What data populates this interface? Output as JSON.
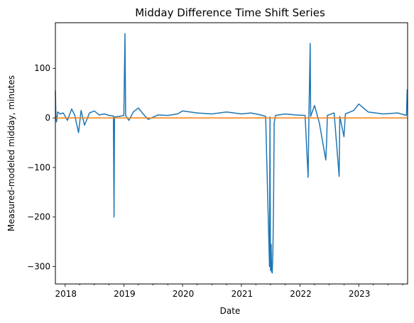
{
  "chart_data": {
    "type": "line",
    "title": "Midday Difference Time Shift Series",
    "xlabel": "Date",
    "ylabel": "Measured-modeled midday, minutes",
    "x_range": [
      "2017-11",
      "2023-11"
    ],
    "ylim": [
      -335,
      192
    ],
    "x_ticks": [
      "2018",
      "2019",
      "2020",
      "2021",
      "2022",
      "2023"
    ],
    "y_ticks": [
      100,
      0,
      -100,
      -200,
      -300
    ],
    "y_tick_labels": [
      "100",
      "0",
      "−100",
      "−200",
      "−300"
    ],
    "grid": false,
    "series": [
      {
        "color": "#1f77b4",
        "points": [
          [
            "2017-11-01",
            55
          ],
          [
            "2017-11-04",
            5
          ],
          [
            "2017-11-08",
            -8
          ],
          [
            "2017-11-15",
            12
          ],
          [
            "2017-12-01",
            8
          ],
          [
            "2017-12-20",
            10
          ],
          [
            "2018-01-15",
            -5
          ],
          [
            "2018-02-10",
            18
          ],
          [
            "2018-03-01",
            6
          ],
          [
            "2018-03-25",
            -30
          ],
          [
            "2018-04-10",
            15
          ],
          [
            "2018-05-01",
            -15
          ],
          [
            "2018-06-01",
            10
          ],
          [
            "2018-07-01",
            14
          ],
          [
            "2018-08-01",
            6
          ],
          [
            "2018-09-01",
            8
          ],
          [
            "2018-10-01",
            5
          ],
          [
            "2018-10-28",
            4
          ],
          [
            "2018-11-01",
            -200
          ],
          [
            "2018-11-04",
            2
          ],
          [
            "2018-12-01",
            3
          ],
          [
            "2019-01-01",
            5
          ],
          [
            "2019-01-08",
            170
          ],
          [
            "2019-01-12",
            5
          ],
          [
            "2019-02-01",
            -5
          ],
          [
            "2019-03-01",
            12
          ],
          [
            "2019-04-01",
            20
          ],
          [
            "2019-05-01",
            8
          ],
          [
            "2019-06-01",
            -3
          ],
          [
            "2019-08-01",
            6
          ],
          [
            "2019-10-01",
            5
          ],
          [
            "2019-12-01",
            8
          ],
          [
            "2020-01-01",
            14
          ],
          [
            "2020-04-01",
            10
          ],
          [
            "2020-07-01",
            8
          ],
          [
            "2020-10-01",
            12
          ],
          [
            "2021-01-01",
            8
          ],
          [
            "2021-03-01",
            10
          ],
          [
            "2021-05-01",
            6
          ],
          [
            "2021-06-01",
            3
          ],
          [
            "2021-06-25",
            -300
          ],
          [
            "2021-06-28",
            2
          ],
          [
            "2021-07-01",
            -308
          ],
          [
            "2021-07-05",
            -255
          ],
          [
            "2021-07-08",
            -310
          ],
          [
            "2021-07-12",
            -313
          ],
          [
            "2021-07-16",
            -270
          ],
          [
            "2021-07-20",
            -175
          ],
          [
            "2021-07-24",
            -10
          ],
          [
            "2021-08-01",
            5
          ],
          [
            "2021-10-01",
            8
          ],
          [
            "2021-12-01",
            6
          ],
          [
            "2022-02-01",
            5
          ],
          [
            "2022-02-20",
            -120
          ],
          [
            "2022-02-25",
            2
          ],
          [
            "2022-03-05",
            150
          ],
          [
            "2022-03-08",
            3
          ],
          [
            "2022-04-01",
            25
          ],
          [
            "2022-05-01",
            -10
          ],
          [
            "2022-06-10",
            -85
          ],
          [
            "2022-06-15",
            -50
          ],
          [
            "2022-06-20",
            5
          ],
          [
            "2022-08-01",
            10
          ],
          [
            "2022-09-01",
            -118
          ],
          [
            "2022-09-05",
            3
          ],
          [
            "2022-10-01",
            -38
          ],
          [
            "2022-10-10",
            8
          ],
          [
            "2022-12-01",
            15
          ],
          [
            "2023-01-01",
            28
          ],
          [
            "2023-03-01",
            12
          ],
          [
            "2023-06-01",
            8
          ],
          [
            "2023-09-01",
            10
          ],
          [
            "2023-10-25",
            5
          ],
          [
            "2023-10-30",
            58
          ]
        ]
      },
      {
        "color": "#ff7f0e",
        "points": [
          [
            "2017-11-01",
            0
          ],
          [
            "2023-10-31",
            0
          ]
        ]
      }
    ]
  }
}
